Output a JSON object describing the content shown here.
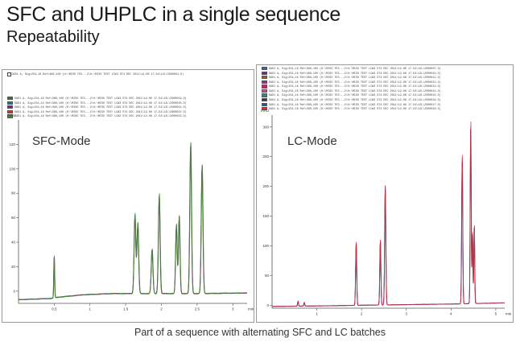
{
  "slide": {
    "title": "SFC and UHPLC in a single sequence",
    "subtitle": "Repeatability",
    "caption": "Part of a sequence with alternating SFC and LC batches"
  },
  "chart_data": [
    {
      "type": "line",
      "mode_label": "SFC-Mode",
      "ylabel": "mAU",
      "xlabel": "min",
      "xlim": [
        0,
        3.2
      ],
      "ylim": [
        -10,
        140
      ],
      "x_ticks": [
        "0.5",
        "1",
        "1.5",
        "2",
        "2.5",
        "3"
      ],
      "x_tick_values": [
        0.5,
        1,
        1.5,
        2,
        2.5,
        3
      ],
      "y_ticks": [
        "0",
        "20",
        "40",
        "60",
        "80",
        "100",
        "120"
      ],
      "y_tick_values": [
        0,
        20,
        40,
        60,
        80,
        100,
        120
      ],
      "legend_header": "DAD1 A, Sig=254,16 Ref=360,100 (H:\\MISO TES...2\\H:\\MISO TEST LCW3 ST4 DEC 2011\\12-06 17-54\\12L\\Z000001.D)",
      "legend": [
        {
          "text": "DAD1 A, Sig=254,16 Ref=360,100 (H:\\MISO TES...2\\H:\\MISO TEST LCW3 ST4 DEC 2011\\12-06 17-54\\12L\\Z000019.D)",
          "color": "#2f7a2f"
        },
        {
          "text": "DAD1 A, Sig=254,16 Ref=360,100 (H:\\MISO TES...2\\H:\\MISO TEST LCW3 ST4 DEC 2011\\12-06 17-54\\12L\\Z000020.D)",
          "color": "#2a6f9a"
        },
        {
          "text": "DAD1 A, Sig=254,16 Ref=360,100 (H:\\MISO TES...2\\H:\\MISO TEST LCW3 ST4 DEC 2011\\12-06 17-54\\12L\\Z000021.D)",
          "color": "#6a2a8a"
        },
        {
          "text": "DAD1 A, Sig=254,16 Ref=360,100 (H:\\MISO TES...2\\H:\\MISO TEST LCW3 ST4 DEC 2011\\12-06 17-54\\12L\\Z000022.D)",
          "color": "#d63030"
        },
        {
          "text": "DAD1 A, Sig=254,16 Ref=360,100 (H:\\MISO TES...2\\H:\\MISO TEST LCW3 ST4 DEC 2011\\12-06 17-54\\12L\\Z000023.D)",
          "color": "#2a9a3a"
        }
      ],
      "series_colors": [
        "#2f7a2f",
        "#2a6f9a",
        "#6a2a8a",
        "#d63030",
        "#2a9a3a"
      ],
      "baseline": {
        "x": [
          0.0,
          0.45,
          0.55,
          0.9,
          1.3,
          1.6,
          2.0,
          2.5,
          3.2
        ],
        "y": [
          -7,
          -6,
          -5,
          -3,
          -2,
          -2,
          -2,
          -2,
          -1.5
        ]
      },
      "peaks": [
        {
          "x": 0.5,
          "height": 34,
          "width": 0.006,
          "type": "spike"
        },
        {
          "x": 1.63,
          "height": 64,
          "width": 0.012
        },
        {
          "x": 1.67,
          "height": 57,
          "width": 0.012
        },
        {
          "x": 1.87,
          "height": 36,
          "width": 0.012
        },
        {
          "x": 1.97,
          "height": 80,
          "width": 0.012
        },
        {
          "x": 2.21,
          "height": 56,
          "width": 0.011
        },
        {
          "x": 2.25,
          "height": 63,
          "width": 0.011
        },
        {
          "x": 2.41,
          "height": 122,
          "width": 0.012
        },
        {
          "x": 2.57,
          "height": 104,
          "width": 0.012
        }
      ]
    },
    {
      "type": "line",
      "mode_label": "LC-Mode",
      "ylabel": "mAU",
      "xlabel": "min",
      "xlim": [
        0,
        5.2
      ],
      "ylim": [
        -5,
        320
      ],
      "x_ticks": [
        "1",
        "2",
        "3",
        "4",
        "5"
      ],
      "x_tick_values": [
        1,
        2,
        3,
        4,
        5
      ],
      "y_ticks": [
        "0",
        "50",
        "100",
        "150",
        "200",
        "250",
        "300"
      ],
      "y_tick_values": [
        0,
        50,
        100,
        150,
        200,
        250,
        300
      ],
      "legend": [
        {
          "text": "DAD1 A, Sig=254,16 Ref=360,100 (H:\\MISO TES...2\\H:\\MISO TEST LCW3 ST4 DEC 2011\\12-06 17-54\\12L\\Z000007.D)",
          "color": "#2a6f9a"
        },
        {
          "text": "DAD1 A, Sig=254,16 Ref=360,100 (H:\\MISO TES...2\\H:\\MISO TEST LCW3 ST4 DEC 2011\\12-06 17-54\\12L\\Z000010.D)",
          "color": "#6a2a8a"
        },
        {
          "text": "DAD1 A, Sig=254,16 Ref=360,100 (H:\\MISO TES...2\\H:\\MISO TEST LCW3 ST4 DEC 2011\\12-06 17-54\\12L\\Z000011.D)",
          "color": "#8a6a2a"
        },
        {
          "text": "DAD1 A, Sig=254,16 Ref=360,100 (H:\\MISO TES...2\\H:\\MISO TEST LCW3 ST4 DEC 2011\\12-06 17-54\\12L\\Z000012.D)",
          "color": "#9a2a9a"
        },
        {
          "text": "DAD1 A, Sig=254,16 Ref=360,100 (H:\\MISO TES...2\\H:\\MISO TEST LCW3 ST4 DEC 2011\\12-06 17-54\\12L\\Z000013.D)",
          "color": "#c02a6a"
        },
        {
          "text": "DAD1 A, Sig=254,16 Ref=360,100 (H:\\MISO TES...2\\H:\\MISO TEST LCW3 ST4 DEC 2011\\12-06 17-54\\12L\\Z000014.D)",
          "color": "#d84a90"
        },
        {
          "text": "DAD1 A, Sig=254,16 Ref=360,100 (H:\\MISO TES...2\\H:\\MISO TEST LCW3 ST4 DEC 2011\\12-06 17-54\\12L\\Z000015.D)",
          "color": "#2a8a8a"
        },
        {
          "text": "DAD1 A, Sig=254,16 Ref=360,100 (H:\\MISO TES...2\\H:\\MISO TEST LCW3 ST4 DEC 2011\\12-06 17-54\\12L\\Z000016.D)",
          "color": "#3a3a3a"
        },
        {
          "text": "DAD1 A, Sig=254,16 Ref=360,100 (H:\\MISO TES...2\\H:\\MISO TEST LCW3 ST4 DEC 2011\\12-06 17-54\\12L\\Z000017.D)",
          "color": "#2a4a9a"
        },
        {
          "text": "DAD1 A, Sig=254,16 Ref=360,100 (H:\\MISO TES...2\\H:\\MISO TEST LCW3 ST4 DEC 2011\\12-06 17-54\\12L\\Z000018.D)",
          "color": "#d63030"
        }
      ],
      "series_colors": [
        "#2a6f9a",
        "#6a2a8a",
        "#c02a6a",
        "#2a4a9a",
        "#d63030"
      ],
      "baseline": {
        "x": [
          0.0,
          0.6,
          1.2,
          2.0,
          3.0,
          4.0,
          5.2
        ],
        "y": [
          -2,
          -1.5,
          -1,
          0,
          1,
          2,
          4
        ]
      },
      "peaks": [
        {
          "x": 0.58,
          "height": 8,
          "width": 0.01,
          "type": "spike"
        },
        {
          "x": 0.72,
          "height": 6,
          "width": 0.01,
          "type": "spike"
        },
        {
          "x": 1.88,
          "height": 105,
          "width": 0.012
        },
        {
          "x": 2.42,
          "height": 108,
          "width": 0.012
        },
        {
          "x": 2.53,
          "height": 198,
          "width": 0.013
        },
        {
          "x": 4.25,
          "height": 245,
          "width": 0.012
        },
        {
          "x": 4.44,
          "height": 300,
          "width": 0.011
        },
        {
          "x": 4.48,
          "height": 118,
          "width": 0.01
        },
        {
          "x": 4.52,
          "height": 130,
          "width": 0.01
        }
      ]
    }
  ]
}
